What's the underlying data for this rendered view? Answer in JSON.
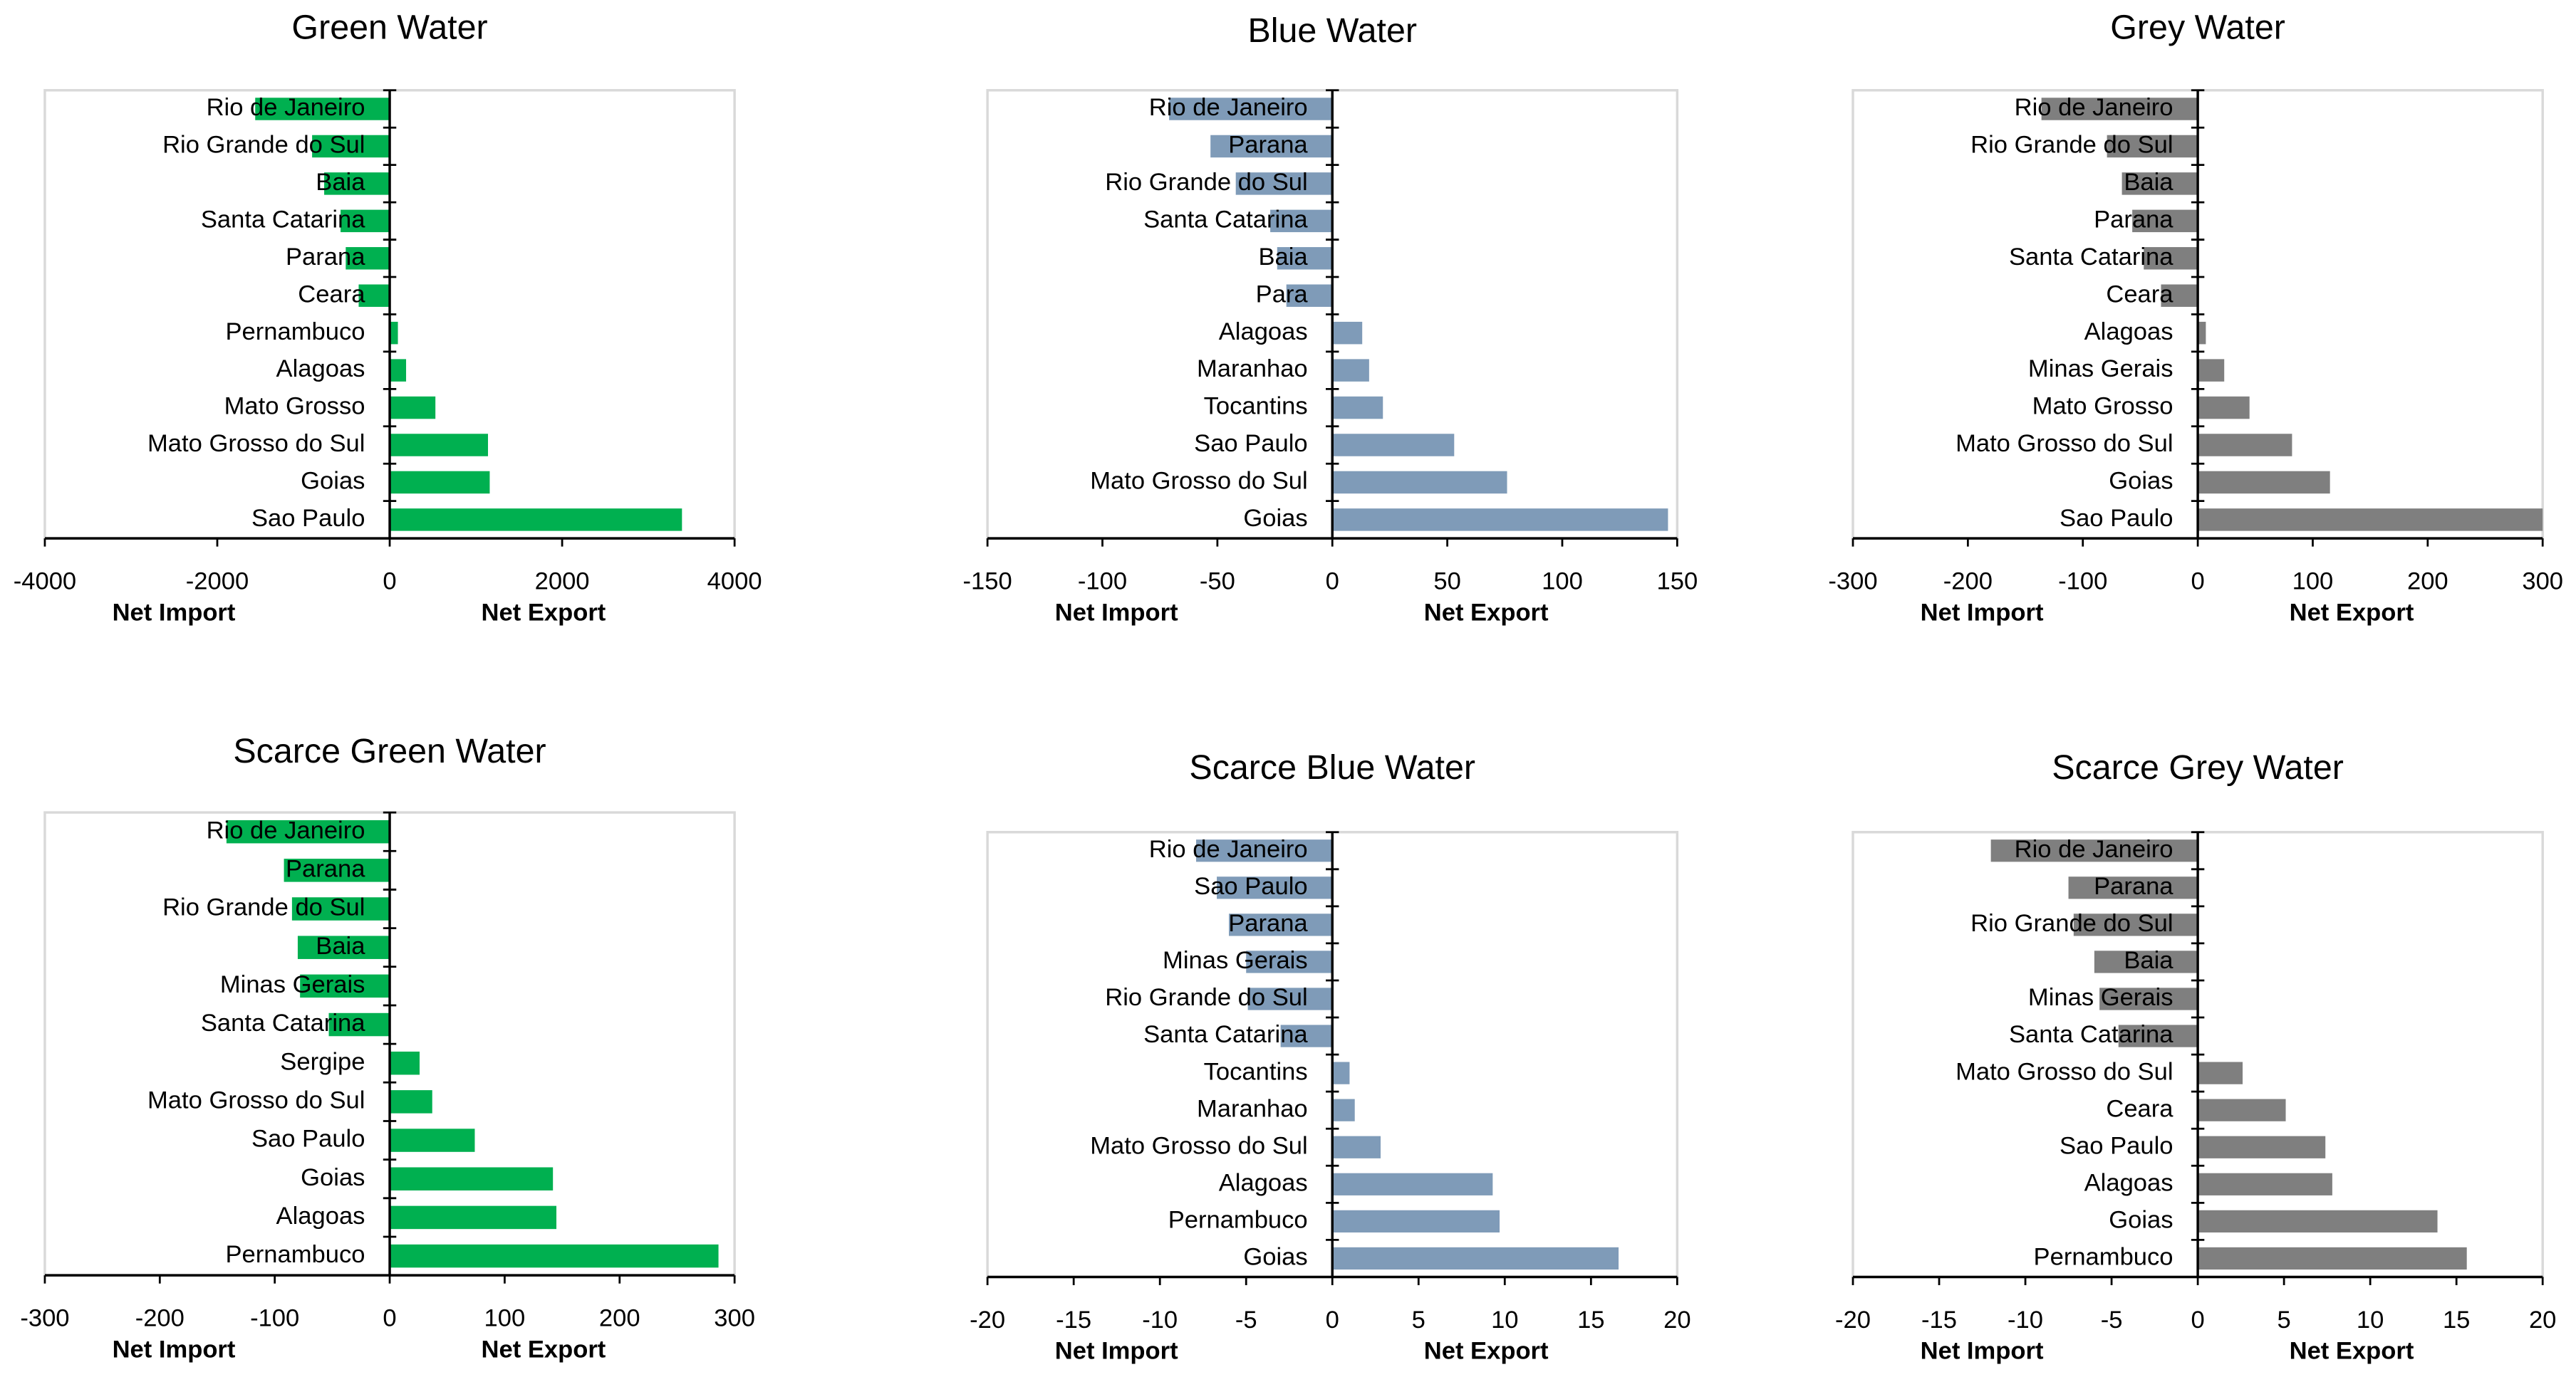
{
  "chart_data": [
    {
      "type": "barh",
      "title": "Green Water",
      "color": "#00b050",
      "xlim": [
        -4000,
        4000
      ],
      "xticks": [
        -4000,
        -2000,
        0,
        2000,
        4000
      ],
      "x_annotations": [
        "Net Import",
        "Net Export"
      ],
      "categories": [
        "Rio de Janeiro",
        "Rio Grande do Sul",
        "Baia",
        "Santa Catarina",
        "Parana",
        "Ceara",
        "Pernambuco",
        "Alagoas",
        "Mato Grosso",
        "Mato Grosso do Sul",
        "Goias",
        "Sao Paulo"
      ],
      "values": [
        -1560,
        -900,
        -760,
        -570,
        -510,
        -360,
        95,
        190,
        530,
        1140,
        1160,
        3390
      ]
    },
    {
      "type": "barh",
      "title": "Blue Water",
      "color": "#7f9bb8",
      "xlim": [
        -150,
        150
      ],
      "xticks": [
        -150,
        -100,
        -50,
        0,
        50,
        100,
        150
      ],
      "x_annotations": [
        "Net Import",
        "Net Export"
      ],
      "categories": [
        "Rio de Janeiro",
        "Parana",
        "Rio Grande do Sul",
        "Santa Catarina",
        "Baia",
        "Para",
        "Alagoas",
        "Maranhao",
        "Tocantins",
        "Sao Paulo",
        "Mato Grosso do Sul",
        "Goias"
      ],
      "values": [
        -71,
        -53,
        -42,
        -27,
        -24,
        -20,
        13,
        16,
        22,
        53,
        76,
        146
      ]
    },
    {
      "type": "barh",
      "title": "Grey Water",
      "color": "#7f7f7f",
      "xlim": [
        -300,
        300
      ],
      "xticks": [
        -300,
        -200,
        -100,
        0,
        100,
        200,
        300
      ],
      "x_annotations": [
        "Net Import",
        "Net Export"
      ],
      "categories": [
        "Rio de Janeiro",
        "Rio Grande do Sul",
        "Baia",
        "Parana",
        "Santa Catarina",
        "Ceara",
        "Alagoas",
        "Minas Gerais",
        "Mato Grosso",
        "Mato Grosso do Sul",
        "Goias",
        "Sao Paulo"
      ],
      "values": [
        -136,
        -79,
        -66,
        -57,
        -47,
        -32,
        7,
        23,
        45,
        82,
        115,
        300
      ]
    },
    {
      "type": "barh",
      "title": "Scarce Green Water",
      "color": "#00b050",
      "xlim": [
        -300,
        300
      ],
      "xticks": [
        -300,
        -200,
        -100,
        0,
        100,
        200,
        300
      ],
      "x_annotations": [
        "Net Import",
        "Net Export"
      ],
      "categories": [
        "Rio de Janeiro",
        "Parana",
        "Rio Grande do Sul",
        "Baia",
        "Minas Gerais",
        "Santa Catarina",
        "Sergipe",
        "Mato Grosso do Sul",
        "Sao Paulo",
        "Goias",
        "Alagoas",
        "Pernambuco"
      ],
      "values": [
        -142,
        -92,
        -85,
        -80,
        -78,
        -53,
        26,
        37,
        74,
        142,
        145,
        286
      ]
    },
    {
      "type": "barh",
      "title": "Scarce Blue Water",
      "color": "#7f9bb8",
      "xlim": [
        -20,
        20
      ],
      "xticks": [
        -20,
        -15,
        -10,
        -5,
        0,
        5,
        10,
        15,
        20
      ],
      "x_annotations": [
        "Net Import",
        "Net Export"
      ],
      "categories": [
        "Rio de Janeiro",
        "Sao Paulo",
        "Parana",
        "Minas Gerais",
        "Rio Grande do Sul",
        "Santa Catarina",
        "Tocantins",
        "Maranhao",
        "Mato Grosso do Sul",
        "Alagoas",
        "Pernambuco",
        "Goias"
      ],
      "values": [
        -7.9,
        -6.7,
        -6.0,
        -5.0,
        -4.9,
        -3.0,
        1.0,
        1.3,
        2.8,
        9.3,
        9.7,
        16.6
      ]
    },
    {
      "type": "barh",
      "title": "Scarce Grey Water",
      "color": "#7f7f7f",
      "xlim": [
        -20,
        20
      ],
      "xticks": [
        -20,
        -15,
        -10,
        -5,
        0,
        5,
        10,
        15,
        20
      ],
      "x_annotations": [
        "Net Import",
        "Net Export"
      ],
      "categories": [
        "Rio de Janeiro",
        "Parana",
        "Rio Grande do Sul",
        "Baia",
        "Minas Gerais",
        "Santa Catarina",
        "Mato Grosso do Sul",
        "Ceara",
        "Sao Paulo",
        "Alagoas",
        "Goias",
        "Pernambuco"
      ],
      "values": [
        -12.0,
        -7.5,
        -7.2,
        -6.0,
        -5.7,
        -4.6,
        2.6,
        5.1,
        7.4,
        7.8,
        13.9,
        15.6
      ]
    }
  ]
}
